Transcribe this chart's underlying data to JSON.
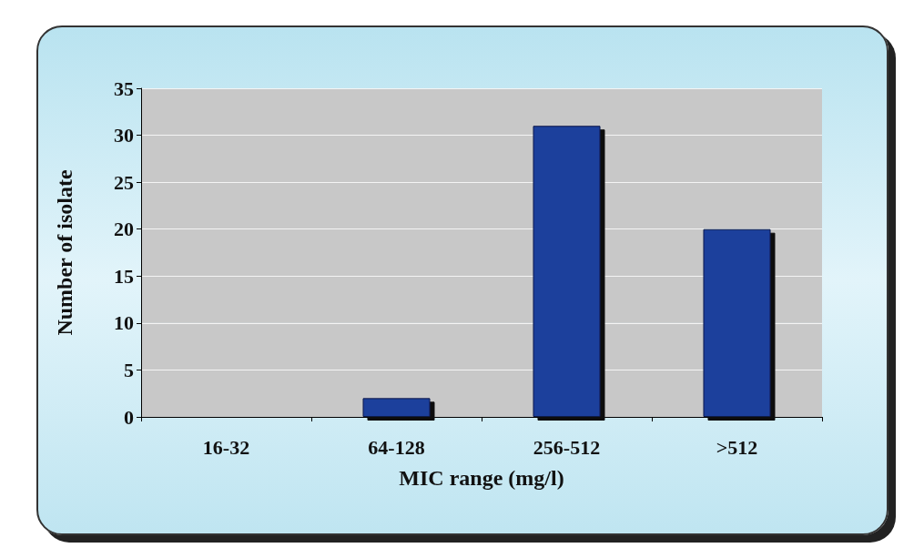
{
  "chart_data": {
    "type": "bar",
    "xlabel": "MIC range (mg/l)",
    "ylabel": "Number of isolate",
    "categories": [
      "16-32",
      "64-128",
      "256-512",
      ">512"
    ],
    "values": [
      0,
      2,
      31,
      20
    ],
    "color": "#1f3f9c",
    "ylim": [
      0,
      35
    ],
    "yticks": [
      0,
      5,
      10,
      15,
      20,
      25,
      30,
      35
    ],
    "grid": "y"
  }
}
